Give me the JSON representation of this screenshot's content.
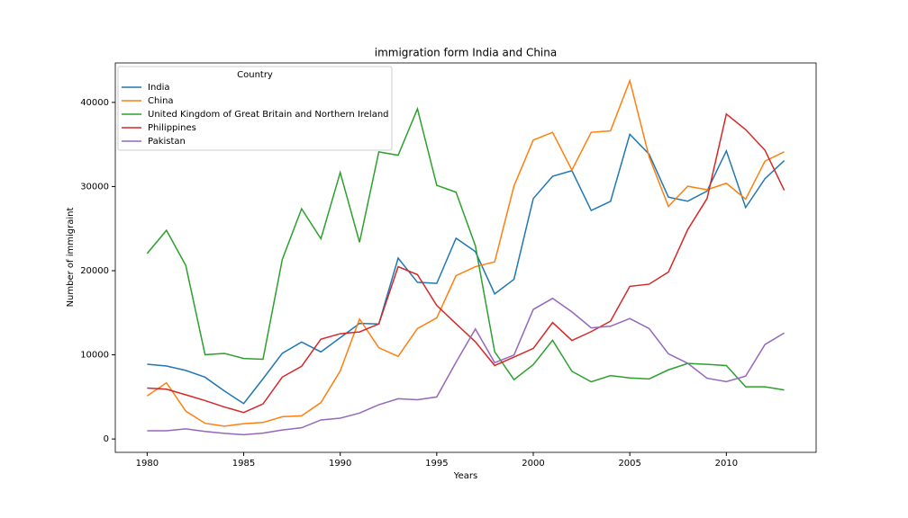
{
  "chart_data": {
    "type": "line",
    "title": "immigration form India and China",
    "xlabel": "Years",
    "ylabel": "Number of immigraint",
    "legend_title": "Country",
    "legend_loc": "upper left",
    "x": [
      1980,
      1981,
      1982,
      1983,
      1984,
      1985,
      1986,
      1987,
      1988,
      1989,
      1990,
      1991,
      1992,
      1993,
      1994,
      1995,
      1996,
      1997,
      1998,
      1999,
      2000,
      2001,
      2002,
      2003,
      2004,
      2005,
      2006,
      2007,
      2008,
      2009,
      2010,
      2011,
      2012,
      2013
    ],
    "xlim": [
      1978.35,
      2014.65
    ],
    "xticks": [
      1980,
      1985,
      1990,
      1995,
      2000,
      2005,
      2010
    ],
    "ylim": [
      -1589,
      44687
    ],
    "yticks": [
      0,
      10000,
      20000,
      30000,
      40000
    ],
    "series": [
      {
        "name": "India",
        "color": "#1f77b4",
        "values": [
          8880,
          8670,
          8147,
          7338,
          5704,
          4211,
          7150,
          10189,
          11522,
          10343,
          12041,
          13734,
          13673,
          21496,
          18620,
          18489,
          23859,
          22268,
          17241,
          18974,
          28572,
          31223,
          31889,
          27155,
          28235,
          36210,
          33848,
          28742,
          28261,
          29456,
          34235,
          27509,
          30933,
          33087
        ]
      },
      {
        "name": "China",
        "color": "#ff7f0e",
        "values": [
          5123,
          6682,
          3308,
          1863,
          1527,
          1816,
          1960,
          2643,
          2758,
          4323,
          8076,
          14255,
          10846,
          9817,
          13128,
          14398,
          19415,
          20475,
          21049,
          30069,
          35529,
          36434,
          31961,
          36439,
          36619,
          42584,
          33518,
          27642,
          30037,
          29622,
          30391,
          28502,
          33024,
          34129
        ]
      },
      {
        "name": "United Kingdom of Great Britain and Northern Ireland",
        "color": "#2ca02c",
        "values": [
          22045,
          24796,
          20620,
          10015,
          10170,
          9564,
          9470,
          21337,
          27359,
          23795,
          31668,
          23380,
          34123,
          33720,
          39231,
          30145,
          29322,
          22965,
          10367,
          7045,
          8840,
          11728,
          8046,
          6797,
          7533,
          7258,
          7140,
          8216,
          8979,
          8876,
          8724,
          6204,
          6195,
          5827
        ]
      },
      {
        "name": "Philippines",
        "color": "#d62728",
        "values": [
          6051,
          5921,
          5249,
          4562,
          3801,
          3150,
          4166,
          7360,
          8639,
          11865,
          12509,
          12718,
          13670,
          20479,
          19532,
          15864,
          13692,
          11549,
          8735,
          9734,
          10763,
          13836,
          11707,
          12758,
          14004,
          18139,
          18400,
          19837,
          24887,
          28573,
          38617,
          36765,
          34315,
          29544
        ]
      },
      {
        "name": "Pakistan",
        "color": "#9467bd",
        "values": [
          978,
          972,
          1201,
          900,
          668,
          514,
          691,
          1072,
          1334,
          2261,
          2470,
          3079,
          4071,
          4777,
          4666,
          4994,
          9125,
          13073,
          9068,
          9979,
          15400,
          16708,
          15110,
          13205,
          13399,
          14314,
          13127,
          10124,
          8994,
          7217,
          6811,
          7468,
          11227,
          12603
        ]
      }
    ]
  }
}
